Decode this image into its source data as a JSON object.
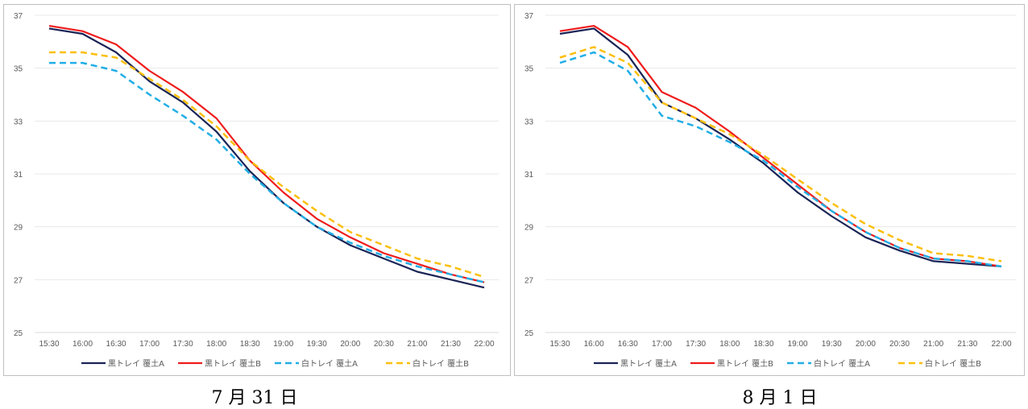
{
  "charts": [
    {
      "caption": "7 月 31 日",
      "chart_data": {
        "type": "line",
        "categories": [
          "15:30",
          "16:00",
          "16:30",
          "17:00",
          "17:30",
          "18:00",
          "18:30",
          "19:00",
          "19:30",
          "20:00",
          "20:30",
          "21:00",
          "21:30",
          "22:00"
        ],
        "ylim": [
          25,
          37
        ],
        "yticks": [
          25,
          27,
          29,
          31,
          33,
          35,
          37
        ],
        "grid": true,
        "legend_position": "bottom",
        "series": [
          {
            "name": "黒トレイ 覆土A",
            "color": "#1a2456",
            "style": "solid",
            "values": [
              36.5,
              36.3,
              35.6,
              34.5,
              33.7,
              32.6,
              31.1,
              29.9,
              29.0,
              28.3,
              27.8,
              27.3,
              27.0,
              26.7
            ]
          },
          {
            "name": "黒トレイ 覆土B",
            "color": "#ee1c1c",
            "style": "solid",
            "values": [
              36.6,
              36.4,
              35.9,
              34.9,
              34.1,
              33.1,
              31.5,
              30.3,
              29.3,
              28.6,
              28.0,
              27.6,
              27.2,
              26.9
            ]
          },
          {
            "name": "白トレイ 覆土A",
            "color": "#22aee6",
            "style": "dashed",
            "values": [
              35.2,
              35.2,
              34.9,
              34.0,
              33.2,
              32.3,
              31.0,
              29.9,
              29.0,
              28.4,
              27.9,
              27.5,
              27.2,
              26.9
            ]
          },
          {
            "name": "白トレイ 覆土B",
            "color": "#fbbf0c",
            "style": "dashed",
            "values": [
              35.6,
              35.6,
              35.4,
              34.6,
              33.8,
              32.8,
              31.5,
              30.5,
              29.6,
              28.8,
              28.3,
              27.8,
              27.5,
              27.1
            ]
          }
        ]
      }
    },
    {
      "caption": "8 月 1 日",
      "chart_data": {
        "type": "line",
        "categories": [
          "15:30",
          "16:00",
          "16:30",
          "17:00",
          "17:30",
          "18:00",
          "18:30",
          "19:00",
          "19:30",
          "20:00",
          "20:30",
          "21:00",
          "21:30",
          "22:00"
        ],
        "ylim": [
          25,
          37
        ],
        "yticks": [
          25,
          27,
          29,
          31,
          33,
          35,
          37
        ],
        "grid": true,
        "legend_position": "bottom",
        "series": [
          {
            "name": "黒トレイ 覆土A",
            "color": "#1a2456",
            "style": "solid",
            "values": [
              36.3,
              36.5,
              35.5,
              33.7,
              33.1,
              32.3,
              31.4,
              30.3,
              29.4,
              28.6,
              28.1,
              27.7,
              27.6,
              27.5
            ]
          },
          {
            "name": "黒トレイ 覆土B",
            "color": "#ee1c1c",
            "style": "solid",
            "values": [
              36.4,
              36.6,
              35.8,
              34.1,
              33.5,
              32.6,
              31.6,
              30.6,
              29.6,
              28.8,
              28.2,
              27.8,
              27.7,
              27.5
            ]
          },
          {
            "name": "白トレイ 覆土A",
            "color": "#22aee6",
            "style": "dashed",
            "values": [
              35.2,
              35.6,
              34.9,
              33.2,
              32.8,
              32.2,
              31.5,
              30.5,
              29.6,
              28.8,
              28.2,
              27.8,
              27.7,
              27.5
            ]
          },
          {
            "name": "白トレイ 覆土B",
            "color": "#fbbf0c",
            "style": "dashed",
            "values": [
              35.4,
              35.8,
              35.2,
              33.7,
              33.1,
              32.5,
              31.7,
              30.8,
              29.9,
              29.1,
              28.5,
              28.0,
              27.9,
              27.7
            ]
          }
        ]
      }
    }
  ]
}
